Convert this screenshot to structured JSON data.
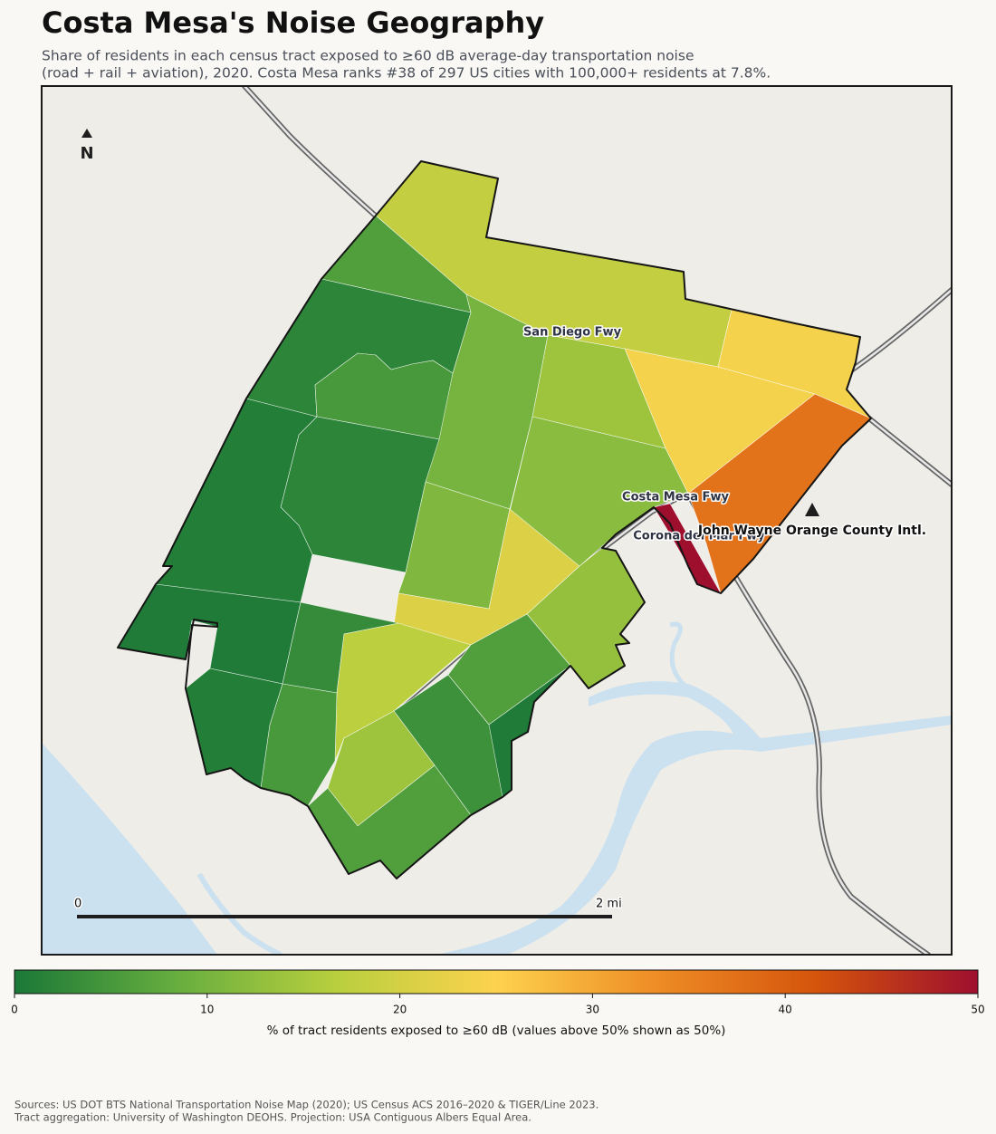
{
  "header": {
    "title": "Costa Mesa's Noise Geography",
    "subtitle": [
      "Share of residents in each census tract exposed to ≥60 dB average-day transportation noise",
      "(road + rail + aviation), 2020. Costa Mesa ranks #38 of 297 US cities with 100,000+ residents at 7.8%."
    ]
  },
  "map": {
    "north_label": "N",
    "road_labels": [
      "San Diego Fwy",
      "Costa Mesa Fwy",
      "Corona del Mar Fwy"
    ],
    "airport_label": "John Wayne Orange County Intl.",
    "scale_bar": [
      "0",
      "2 mi"
    ],
    "tracts": {
      "values": [
        18,
        6,
        24,
        24,
        37,
        50,
        14,
        12,
        10,
        2,
        5,
        2,
        1,
        11,
        21,
        0.5,
        3,
        17,
        13,
        6,
        0.5,
        4,
        5,
        14,
        6,
        1
      ]
    }
  },
  "colorbar": {
    "label": "% of tract residents exposed to ≥60 dB (values above 50% shown as 50%)",
    "lim": [
      0,
      50
    ],
    "ticks": [
      0,
      10,
      20,
      30,
      40,
      50
    ],
    "colormap": [
      "#1a7837",
      "#66ad3f",
      "#b8cf3e",
      "#fdd24e",
      "#ee8c25",
      "#d4540c",
      "#9e0f2e"
    ]
  },
  "sources": [
    "Sources: US DOT BTS National Transportation Noise Map (2020); US Census ACS 2016–2020 & TIGER/Line 2023.",
    "Tract aggregation: University of Washington DEOHS. Projection: USA Contiguous Albers Equal Area."
  ]
}
